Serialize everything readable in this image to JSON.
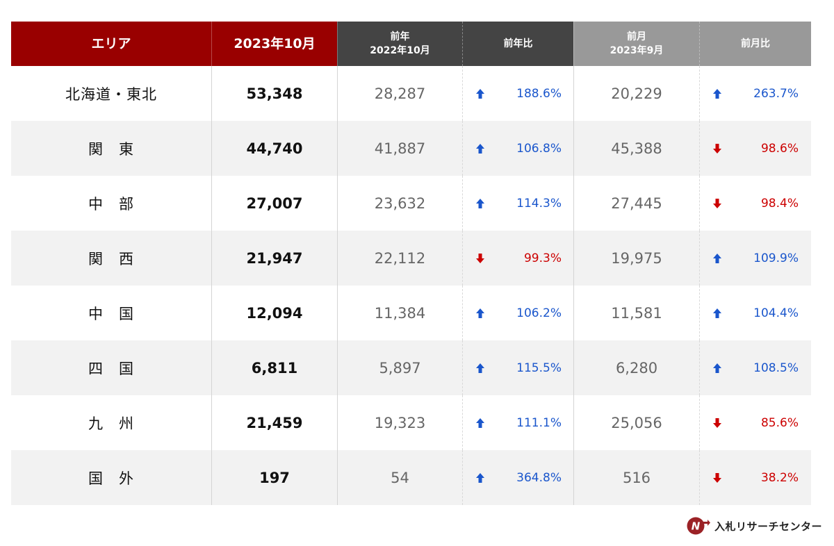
{
  "colors": {
    "header_red": "#990000",
    "header_dark": "#444444",
    "header_gray": "#999999",
    "up": "#1a56cc",
    "down": "#cc0000"
  },
  "header": {
    "area": "エリア",
    "current": "2023年10月",
    "prev_year_line1": "前年",
    "prev_year_line2": "2022年10月",
    "yoy": "前年比",
    "prev_month_line1": "前月",
    "prev_month_line2": "2023年9月",
    "mom": "前月比"
  },
  "rows": [
    {
      "area": "北海道・東北",
      "current": "53,348",
      "prev_year": "28,287",
      "yoy": "188.6%",
      "yoy_dir": "up",
      "prev_month": "20,229",
      "mom": "263.7%",
      "mom_dir": "up"
    },
    {
      "area": "関　東",
      "current": "44,740",
      "prev_year": "41,887",
      "yoy": "106.8%",
      "yoy_dir": "up",
      "prev_month": "45,388",
      "mom": "98.6%",
      "mom_dir": "down"
    },
    {
      "area": "中　部",
      "current": "27,007",
      "prev_year": "23,632",
      "yoy": "114.3%",
      "yoy_dir": "up",
      "prev_month": "27,445",
      "mom": "98.4%",
      "mom_dir": "down"
    },
    {
      "area": "関　西",
      "current": "21,947",
      "prev_year": "22,112",
      "yoy": "99.3%",
      "yoy_dir": "down",
      "prev_month": "19,975",
      "mom": "109.9%",
      "mom_dir": "up"
    },
    {
      "area": "中　国",
      "current": "12,094",
      "prev_year": "11,384",
      "yoy": "106.2%",
      "yoy_dir": "up",
      "prev_month": "11,581",
      "mom": "104.4%",
      "mom_dir": "up"
    },
    {
      "area": "四　国",
      "current": "6,811",
      "prev_year": "5,897",
      "yoy": "115.5%",
      "yoy_dir": "up",
      "prev_month": "6,280",
      "mom": "108.5%",
      "mom_dir": "up"
    },
    {
      "area": "九　州",
      "current": "21,459",
      "prev_year": "19,323",
      "yoy": "111.1%",
      "yoy_dir": "up",
      "prev_month": "25,056",
      "mom": "85.6%",
      "mom_dir": "down"
    },
    {
      "area": "国　外",
      "current": "197",
      "prev_year": "54",
      "yoy": "364.8%",
      "yoy_dir": "up",
      "prev_month": "516",
      "mom": "38.2%",
      "mom_dir": "down"
    }
  ],
  "logo": {
    "text": "入札リサーチセンター",
    "icon": "nr-logo-icon"
  }
}
